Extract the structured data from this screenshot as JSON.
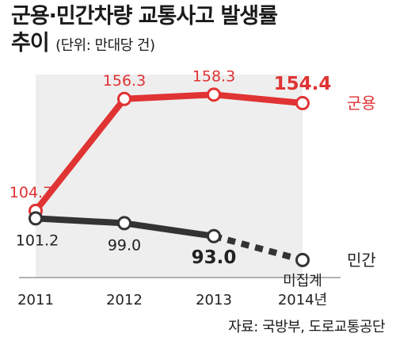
{
  "title_line1": "군용·민간차량 교통사고 발생률",
  "title_line2": "추이",
  "unit": "(단위: 만대당 건)",
  "source": "자료: 국방부, 도로교통공단",
  "chart_data": {
    "type": "line",
    "categories": [
      "2011",
      "2012",
      "2013",
      "2014년"
    ],
    "series": [
      {
        "name": "군용",
        "values": [
          104.7,
          156.3,
          158.3,
          154.4
        ],
        "labels": [
          "104.7",
          "156.3",
          "158.3",
          "154.4"
        ],
        "color": "#e03333"
      },
      {
        "name": "민간",
        "values": [
          101.2,
          99.0,
          93.0,
          82.0
        ],
        "labels": [
          "101.2",
          "99.0",
          "93.0",
          ""
        ],
        "color": "#333333",
        "last_point_note": "미집계",
        "last_segment_dashed": true
      }
    ],
    "ylim": [
      60,
      180
    ],
    "grid": false,
    "legend": "right labels",
    "colors": {
      "background_panel": "#eeeeee"
    }
  }
}
